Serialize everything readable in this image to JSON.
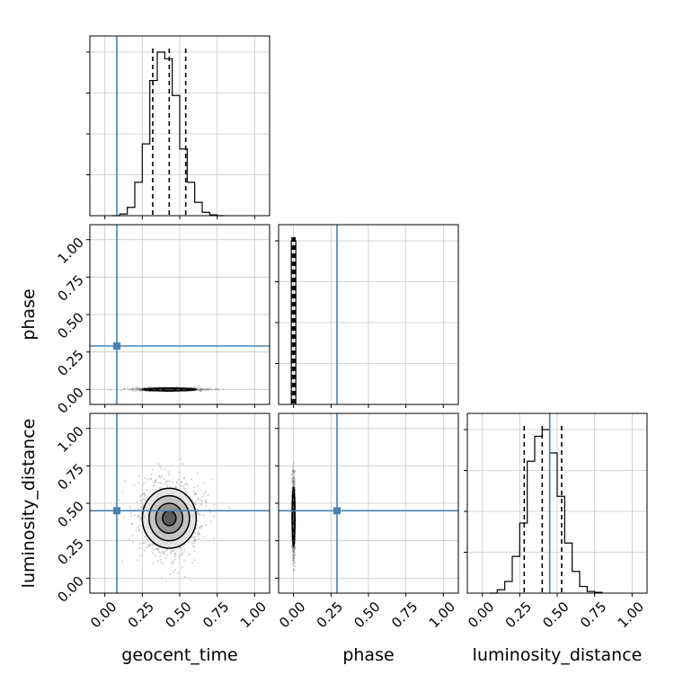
{
  "chart_data": {
    "type": "corner",
    "parameters": [
      "geocent_time",
      "phase",
      "luminosity_distance"
    ],
    "truths": {
      "geocent_time": 0.08,
      "phase": 0.29,
      "luminosity_distance": 0.45
    },
    "axis_range": [
      -0.1,
      1.1
    ],
    "ticks": [
      0.0,
      0.25,
      0.5,
      0.75,
      1.0
    ],
    "tick_labels": [
      "0.00",
      "0.25",
      "0.50",
      "0.75",
      "1.00"
    ],
    "xlabels": [
      "geocent_time",
      "phase",
      "luminosity_distance"
    ],
    "ylabels": [
      "",
      "phase",
      "luminosity_distance"
    ],
    "grid": true,
    "marginals": [
      {
        "parameter": "geocent_time",
        "bin_edges": [
          0.05,
          0.1,
          0.15,
          0.2,
          0.25,
          0.3,
          0.35,
          0.4,
          0.45,
          0.5,
          0.55,
          0.6,
          0.65,
          0.7,
          0.75,
          0.8
        ],
        "counts": [
          0.0,
          0.01,
          0.05,
          0.2,
          0.43,
          0.81,
          0.98,
          0.94,
          0.72,
          0.4,
          0.2,
          0.08,
          0.02,
          0.005,
          0.0
        ],
        "quantiles": [
          0.32,
          0.43,
          0.54
        ]
      },
      {
        "parameter": "phase",
        "bin_edges": [
          -0.015,
          0.0,
          0.015
        ],
        "counts": [
          1.0,
          1.0
        ],
        "quantiles": [
          -0.01,
          0.0,
          0.01
        ]
      },
      {
        "parameter": "luminosity_distance",
        "bin_edges": [
          0.05,
          0.1,
          0.15,
          0.2,
          0.25,
          0.3,
          0.35,
          0.4,
          0.45,
          0.5,
          0.55,
          0.6,
          0.65,
          0.7,
          0.75,
          0.8
        ],
        "counts": [
          0.0,
          0.02,
          0.07,
          0.22,
          0.42,
          0.79,
          0.94,
          0.98,
          0.84,
          0.58,
          0.3,
          0.13,
          0.04,
          0.01,
          0.005
        ],
        "quantiles": [
          0.28,
          0.4,
          0.53
        ]
      }
    ],
    "joints": [
      {
        "x": "geocent_time",
        "y": "phase",
        "center": [
          0.43,
          0.0
        ],
        "sigma": [
          0.09,
          0.004
        ]
      },
      {
        "x": "geocent_time",
        "y": "luminosity_distance",
        "center": [
          0.43,
          0.4
        ],
        "sigma": [
          0.09,
          0.1
        ]
      },
      {
        "x": "phase",
        "y": "luminosity_distance",
        "center": [
          0.0,
          0.41
        ],
        "sigma": [
          0.004,
          0.1
        ]
      }
    ],
    "colors": {
      "truth": "#4682b4",
      "hist": "#000000",
      "grid": "#c8c8c8"
    }
  }
}
